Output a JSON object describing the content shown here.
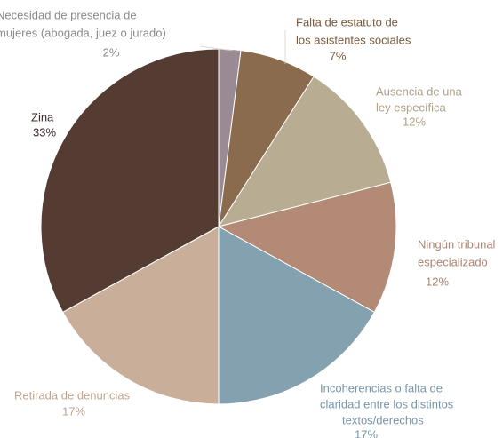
{
  "chart_data": {
    "type": "pie",
    "labels": [
      [
        "Necesidad de presencia de",
        "mujeres (abogada, juez o jurado)"
      ],
      [
        "Falta de estatuto de",
        "los asistentes sociales"
      ],
      [
        "Ausencia de una",
        "ley específica"
      ],
      [
        "Ningún tribunal",
        "especializado"
      ],
      [
        "Incoherencias o falta de",
        "claridad entre los distintos",
        "textos/derechos"
      ],
      [
        "Retirada de denuncias"
      ],
      [
        "Zina"
      ]
    ],
    "values": [
      2,
      7,
      12,
      12,
      17,
      17,
      33
    ],
    "value_labels": [
      "2%",
      "7%",
      "12%",
      "12%",
      "17%",
      "17%",
      "33%"
    ],
    "colors": [
      "#9a8a94",
      "#8b6b4d",
      "#b8ad93",
      "#b38a76",
      "#84a1b0",
      "#c9ae99",
      "#553c33"
    ],
    "label_colors": [
      "#8a8a8a",
      "#7a5a3c",
      "#ada188",
      "#ad8571",
      "#7896a8",
      "#bfa48f",
      "#3a2a24"
    ]
  }
}
